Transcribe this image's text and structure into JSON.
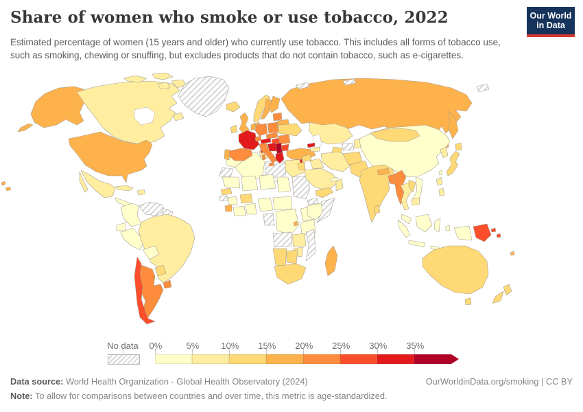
{
  "header": {
    "title": "Share of women who smoke or use tobacco, 2022",
    "subtitle": "Estimated percentage of women (15 years and older) who currently use tobacco. This includes all forms of tobacco use, such as smoking, chewing or snuffing, but excludes products that do not contain tobacco, such as e-cigarettes.",
    "logo": {
      "line1": "Our World",
      "line2": "in Data",
      "bg_color": "#16335c",
      "stripe_color": "#d6392f"
    }
  },
  "legend": {
    "no_data_label": "No data"
  },
  "footer": {
    "source_label": "Data source:",
    "source_text": " World Health Organization - Global Health Observatory (2024)",
    "link_text": "OurWorldinData.org/smoking | CC BY",
    "note_label": "Note:",
    "note_text": " To allow for comparisons between countries and over time, this metric is age-standardized."
  },
  "chart_data": {
    "type": "choropleth",
    "title": "Share of women who smoke or use tobacco",
    "year": 2022,
    "unit": "%",
    "legend_position": "bottom",
    "no_data_fill": "hatched",
    "bins": [
      {
        "label": "0%",
        "range": "0-5%",
        "color": "#ffffcc"
      },
      {
        "label": "5%",
        "range": "5-10%",
        "color": "#ffeda0"
      },
      {
        "label": "10%",
        "range": "10-15%",
        "color": "#fed976"
      },
      {
        "label": "15%",
        "range": "15-20%",
        "color": "#feb24c"
      },
      {
        "label": "20%",
        "range": "20-25%",
        "color": "#fd8d3c"
      },
      {
        "label": "25%",
        "range": "25-30%",
        "color": "#fc4e2a"
      },
      {
        "label": "30%",
        "range": "30-35%",
        "color": "#e31a1c"
      },
      {
        "label": "35%",
        "range": "35%+",
        "color": "#b10026"
      }
    ],
    "countries": {
      "canada": {
        "name": "Canada",
        "bin": 1
      },
      "usa": {
        "name": "United States",
        "bin": 3
      },
      "greenland": {
        "name": "Greenland",
        "bin": "no-data"
      },
      "mexico": {
        "name": "Mexico",
        "bin": 1
      },
      "central-america": {
        "name": "Central America",
        "bin": 0
      },
      "cuba": {
        "name": "Cuba",
        "bin": 1
      },
      "hispaniola": {
        "name": "Haiti & Dominican Republic",
        "bin": 1
      },
      "hawaii": {
        "name": "Hawaii (United States)",
        "bin": 3
      },
      "colombia": {
        "name": "Colombia",
        "bin": 0
      },
      "venezuela": {
        "name": "Venezuela",
        "bin": "no-data"
      },
      "guyanas": {
        "name": "Guyana & Suriname",
        "bin": "no-data"
      },
      "ecuador": {
        "name": "Ecuador",
        "bin": 0
      },
      "peru": {
        "name": "Peru",
        "bin": 0
      },
      "brazil": {
        "name": "Brazil",
        "bin": 1
      },
      "bolivia": {
        "name": "Bolivia",
        "bin": 0
      },
      "paraguay": {
        "name": "Paraguay",
        "bin": 2
      },
      "uruguay": {
        "name": "Uruguay",
        "bin": 4
      },
      "argentina": {
        "name": "Argentina",
        "bin": 4
      },
      "chile": {
        "name": "Chile",
        "bin": 5
      },
      "iceland": {
        "name": "Iceland",
        "bin": 2
      },
      "ireland": {
        "name": "Ireland",
        "bin": 2
      },
      "uk": {
        "name": "United Kingdom",
        "bin": 3
      },
      "norway": {
        "name": "Norway",
        "bin": 2
      },
      "sweden": {
        "name": "Sweden",
        "bin": 3
      },
      "finland": {
        "name": "Finland",
        "bin": 3
      },
      "denmark": {
        "name": "Denmark",
        "bin": 3
      },
      "baltics": {
        "name": "Baltic states",
        "bin": 4
      },
      "belarus": {
        "name": "Belarus",
        "bin": 3
      },
      "poland": {
        "name": "Poland",
        "bin": 4
      },
      "germany": {
        "name": "Germany",
        "bin": 4
      },
      "benelux": {
        "name": "Netherlands & Belgium",
        "bin": 3
      },
      "france": {
        "name": "France",
        "bin": 6
      },
      "spain": {
        "name": "Spain",
        "bin": 4
      },
      "portugal": {
        "name": "Portugal",
        "bin": 3
      },
      "switzerland": {
        "name": "Switzerland",
        "bin": 4
      },
      "czech-slovakia": {
        "name": "Czechia & Slovakia",
        "bin": 4
      },
      "austria": {
        "name": "Austria",
        "bin": 6
      },
      "hungary": {
        "name": "Hungary",
        "bin": 5
      },
      "romania": {
        "name": "Romania",
        "bin": 4
      },
      "ukraine": {
        "name": "Ukraine",
        "bin": 2
      },
      "italy": {
        "name": "Italy",
        "bin": 4
      },
      "croatia-bosnia": {
        "name": "Croatia & Bosnia and Herzegovina",
        "bin": 6
      },
      "serbia-balkans": {
        "name": "Serbia & North Macedonia & Albania",
        "bin": 7
      },
      "greece": {
        "name": "Greece",
        "bin": 6
      },
      "bulgaria": {
        "name": "Bulgaria",
        "bin": 5
      },
      "turkey": {
        "name": "Turkey",
        "bin": 3
      },
      "russia": {
        "name": "Russia",
        "bin": 3
      },
      "arctic-islands": {
        "name": "Arctic islands",
        "bin": "no-data"
      },
      "kazakhstan": {
        "name": "Kazakhstan",
        "bin": 1
      },
      "uzbekistan": {
        "name": "Uzbekistan",
        "bin": "no-data"
      },
      "turkmenistan": {
        "name": "Turkmenistan",
        "bin": 2
      },
      "kyrgyz-tajik": {
        "name": "Kyrgyzstan & Tajikistan",
        "bin": 1
      },
      "georgia": {
        "name": "Georgia",
        "bin": 6
      },
      "armenia-azerbaijan": {
        "name": "Armenia & Azerbaijan",
        "bin": 1
      },
      "syria": {
        "name": "Syria",
        "bin": 2
      },
      "lebanon": {
        "name": "Lebanon",
        "bin": 6
      },
      "israel-jordan": {
        "name": "Israel & Jordan",
        "bin": 2
      },
      "iraq": {
        "name": "Iraq",
        "bin": 1
      },
      "iran": {
        "name": "Iran",
        "bin": 1
      },
      "saudi-arabia": {
        "name": "Saudi Arabia",
        "bin": 1
      },
      "yemen": {
        "name": "Yemen",
        "bin": 2
      },
      "oman": {
        "name": "Oman",
        "bin": 1
      },
      "gulf-states": {
        "name": "United Arab Emirates & Qatar",
        "bin": 0
      },
      "afghanistan": {
        "name": "Afghanistan",
        "bin": 2
      },
      "pakistan": {
        "name": "Pakistan",
        "bin": 2
      },
      "india": {
        "name": "India",
        "bin": 2
      },
      "nepal": {
        "name": "Nepal",
        "bin": 3
      },
      "bangladesh": {
        "name": "Bangladesh",
        "bin": 4
      },
      "sri-lanka": {
        "name": "Sri Lanka",
        "bin": 2
      },
      "myanmar": {
        "name": "Myanmar",
        "bin": 4
      },
      "china": {
        "name": "China",
        "bin": 0
      },
      "mongolia": {
        "name": "Mongolia",
        "bin": 2
      },
      "taiwan": {
        "name": "Taiwan",
        "bin": 0
      },
      "korea": {
        "name": "South Korea",
        "bin": 1
      },
      "japan": {
        "name": "Japan",
        "bin": 2
      },
      "thailand": {
        "name": "Thailand",
        "bin": 1
      },
      "laos": {
        "name": "Laos",
        "bin": 2
      },
      "vietnam": {
        "name": "Vietnam",
        "bin": 0
      },
      "cambodia": {
        "name": "Cambodia",
        "bin": 1
      },
      "malaysia": {
        "name": "Malaysia",
        "bin": 0
      },
      "philippines": {
        "name": "Philippines",
        "bin": 1
      },
      "indonesia": {
        "name": "Indonesia",
        "bin": 0
      },
      "png": {
        "name": "Papua New Guinea",
        "bin": 5
      },
      "solomon": {
        "name": "Solomon Islands",
        "bin": 5
      },
      "fiji": {
        "name": "Fiji",
        "bin": 3
      },
      "australia": {
        "name": "Australia",
        "bin": 2
      },
      "new-zealand": {
        "name": "New Zealand",
        "bin": 2
      },
      "morocco": {
        "name": "Morocco",
        "bin": 0
      },
      "western-sahara": {
        "name": "Western Sahara",
        "bin": "no-data"
      },
      "algeria": {
        "name": "Algeria",
        "bin": 0
      },
      "tunisia": {
        "name": "Tunisia",
        "bin": 1
      },
      "libya": {
        "name": "Libya",
        "bin": "no-data"
      },
      "egypt": {
        "name": "Egypt",
        "bin": 1
      },
      "mauritania": {
        "name": "Mauritania",
        "bin": 0
      },
      "mali": {
        "name": "Mali",
        "bin": 0
      },
      "niger": {
        "name": "Niger",
        "bin": 0
      },
      "chad": {
        "name": "Chad",
        "bin": 0
      },
      "sudan": {
        "name": "Sudan & South Sudan",
        "bin": "no-data"
      },
      "eritrea": {
        "name": "Eritrea",
        "bin": "no-data"
      },
      "senegal": {
        "name": "Senegal",
        "bin": 2
      },
      "guinea-bissau": {
        "name": "Guinea-Bissau",
        "bin": "no-data"
      },
      "guinea": {
        "name": "Guinea",
        "bin": 0
      },
      "sierra-leone": {
        "name": "Sierra Leone",
        "bin": 3
      },
      "liberia-ivory": {
        "name": "Liberia & Cote d'Ivoire",
        "bin": 0
      },
      "burkina-faso": {
        "name": "Burkina Faso",
        "bin": 2
      },
      "ghana-benin": {
        "name": "Ghana, Togo & Benin",
        "bin": 0
      },
      "nigeria": {
        "name": "Nigeria",
        "bin": 0
      },
      "cameroon-car": {
        "name": "Cameroon & Central African Republic",
        "bin": 0
      },
      "gabon-congo": {
        "name": "Gabon & Congo",
        "bin": "no-data"
      },
      "drc": {
        "name": "Democratic Republic of Congo",
        "bin": 0
      },
      "uganda-kenya": {
        "name": "Uganda & Kenya",
        "bin": 0
      },
      "rwanda": {
        "name": "Rwanda & Burundi",
        "bin": 3
      },
      "tanzania": {
        "name": "Tanzania",
        "bin": 0
      },
      "ethiopia": {
        "name": "Ethiopia",
        "bin": 0
      },
      "somalia": {
        "name": "Somalia",
        "bin": "no-data"
      },
      "angola": {
        "name": "Angola",
        "bin": "no-data"
      },
      "zambia": {
        "name": "Zambia",
        "bin": 1
      },
      "mozambique": {
        "name": "Mozambique",
        "bin": "no-data"
      },
      "zimbabwe": {
        "name": "Zimbabwe",
        "bin": 1
      },
      "namibia": {
        "name": "Namibia",
        "bin": 2
      },
      "botswana": {
        "name": "Botswana",
        "bin": 2
      },
      "south-africa": {
        "name": "South Africa",
        "bin": 2
      },
      "madagascar": {
        "name": "Madagascar",
        "bin": 3
      }
    }
  }
}
